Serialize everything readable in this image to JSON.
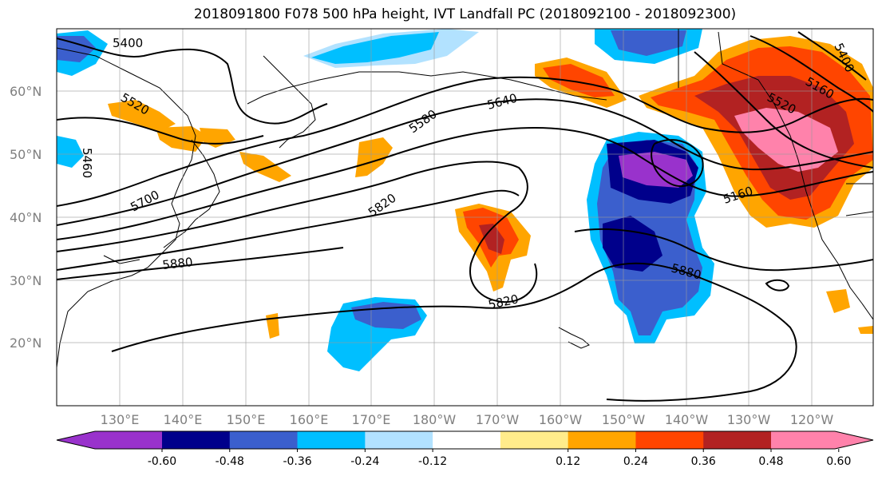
{
  "title": "2018091800 F078 500 hPa height, IVT Landfall PC (2018092100 - 2018092300)",
  "map": {
    "lat_labels": [
      "60°N",
      "50°N",
      "40°N",
      "30°N",
      "20°N"
    ],
    "lon_labels": [
      "130°E",
      "140°E",
      "150°E",
      "160°E",
      "170°E",
      "180°W",
      "170°W",
      "160°W",
      "150°W",
      "140°W",
      "130°W",
      "120°W"
    ],
    "contour_labels": [
      "5400",
      "5520",
      "5640",
      "5580",
      "5160",
      "5520",
      "5160",
      "5700",
      "5820",
      "5880",
      "5880",
      "5820",
      "5400",
      "5460"
    ]
  },
  "colorbar": {
    "tick_labels": [
      "-0.60",
      "-0.48",
      "-0.36",
      "-0.24",
      "-0.12",
      "0.12",
      "0.24",
      "0.36",
      "0.48",
      "0.60"
    ],
    "colors": [
      "#9932cc",
      "#00008b",
      "#3b5fcd",
      "#00bfff",
      "#b2e2ff",
      "#ffffff",
      "#ffec8b",
      "#ffa500",
      "#ff4500",
      "#b22222",
      "#ff82ab"
    ]
  }
}
